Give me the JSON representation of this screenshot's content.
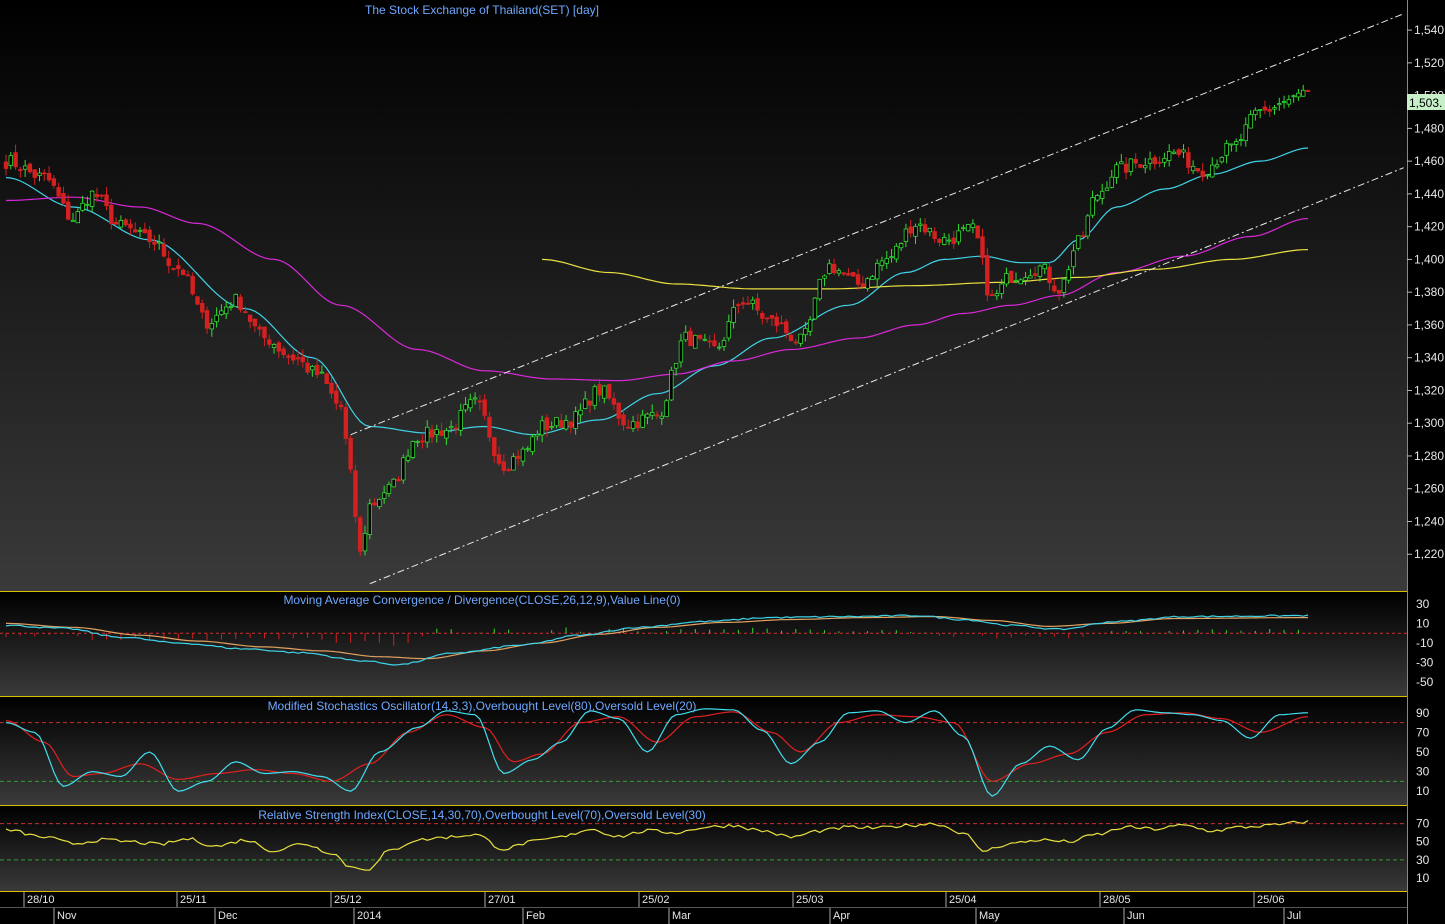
{
  "chart_data": {
    "type": "candlestick",
    "panels": {
      "price": {
        "title": "The Stock Exchange of Thailand(SET) [day]",
        "y_ticks": [
          "1,220",
          "1,240",
          "1,260",
          "1,280",
          "1,300",
          "1,320",
          "1,340",
          "1,360",
          "1,380",
          "1,400",
          "1,420",
          "1,440",
          "1,460",
          "1,480",
          "1,500",
          "1,520",
          "1,540"
        ],
        "ylim": [
          1200,
          1550
        ],
        "last_value_label": "1,503.",
        "last_value": 1503
      },
      "macd": {
        "title": "Moving Average Convergence / Divergence(CLOSE,26,12,9),Value Line(0)",
        "y_ticks": [
          "30",
          "10",
          "-10",
          "-30",
          "-50"
        ],
        "ylim": [
          -60,
          38
        ]
      },
      "stoch": {
        "title": "Modified Stochastics Oscillator(14,3,3),Overbought Level(80),Oversold Level(20)",
        "y_ticks": [
          "90",
          "70",
          "50",
          "30",
          "10"
        ],
        "ylim": [
          0,
          102
        ],
        "overbought": 80,
        "oversold": 20
      },
      "rsi": {
        "title": "Relative Strength Index(CLOSE,14,30,70),Overbought Level(70),Oversold Level(30)",
        "y_ticks": [
          "70",
          "50",
          "30",
          "10"
        ],
        "ylim": [
          0,
          85
        ],
        "overbought": 70,
        "oversold": 30
      }
    },
    "date_labels_top": [
      "28/10",
      "25/11",
      "25/12",
      "27/01",
      "25/02",
      "25/03",
      "25/04",
      "28/05",
      "25/06"
    ],
    "date_labels_bottom": [
      "Nov",
      "Dec",
      "2014",
      "Feb",
      "Mar",
      "Apr",
      "May",
      "Jun",
      "Jul"
    ],
    "price_anchors": [
      [
        0,
        1460
      ],
      [
        8,
        1450
      ],
      [
        14,
        1425
      ],
      [
        18,
        1440
      ],
      [
        24,
        1420
      ],
      [
        30,
        1412
      ],
      [
        36,
        1395
      ],
      [
        42,
        1362
      ],
      [
        48,
        1375
      ],
      [
        54,
        1352
      ],
      [
        60,
        1340
      ],
      [
        65,
        1330
      ],
      [
        70,
        1310
      ],
      [
        72,
        1268
      ],
      [
        74,
        1220
      ],
      [
        76,
        1250
      ],
      [
        80,
        1260
      ],
      [
        86,
        1292
      ],
      [
        92,
        1296
      ],
      [
        98,
        1312
      ],
      [
        104,
        1275
      ],
      [
        108,
        1282
      ],
      [
        112,
        1298
      ],
      [
        118,
        1302
      ],
      [
        124,
        1320
      ],
      [
        130,
        1300
      ],
      [
        136,
        1305
      ],
      [
        142,
        1352
      ],
      [
        148,
        1345
      ],
      [
        154,
        1375
      ],
      [
        160,
        1362
      ],
      [
        166,
        1350
      ],
      [
        172,
        1396
      ],
      [
        178,
        1385
      ],
      [
        184,
        1400
      ],
      [
        190,
        1422
      ],
      [
        196,
        1412
      ],
      [
        202,
        1418
      ],
      [
        206,
        1376
      ],
      [
        210,
        1390
      ],
      [
        216,
        1395
      ],
      [
        220,
        1382
      ],
      [
        224,
        1410
      ],
      [
        228,
        1440
      ],
      [
        232,
        1455
      ],
      [
        238,
        1460
      ],
      [
        244,
        1465
      ],
      [
        250,
        1455
      ],
      [
        256,
        1468
      ],
      [
        262,
        1490
      ],
      [
        268,
        1497
      ],
      [
        272,
        1503
      ]
    ],
    "ema_fast_anchors": [
      [
        0,
        1450
      ],
      [
        14,
        1432
      ],
      [
        30,
        1412
      ],
      [
        50,
        1370
      ],
      [
        64,
        1340
      ],
      [
        76,
        1298
      ],
      [
        88,
        1294
      ],
      [
        100,
        1298
      ],
      [
        110,
        1293
      ],
      [
        124,
        1302
      ],
      [
        136,
        1318
      ],
      [
        148,
        1335
      ],
      [
        160,
        1352
      ],
      [
        176,
        1372
      ],
      [
        188,
        1392
      ],
      [
        196,
        1400
      ],
      [
        204,
        1402
      ],
      [
        212,
        1398
      ],
      [
        218,
        1398
      ],
      [
        224,
        1412
      ],
      [
        232,
        1432
      ],
      [
        242,
        1443
      ],
      [
        252,
        1452
      ],
      [
        262,
        1460
      ],
      [
        272,
        1468
      ]
    ],
    "ema_mid_anchors": [
      [
        0,
        1436
      ],
      [
        14,
        1438
      ],
      [
        28,
        1432
      ],
      [
        40,
        1422
      ],
      [
        56,
        1400
      ],
      [
        70,
        1372
      ],
      [
        86,
        1345
      ],
      [
        100,
        1332
      ],
      [
        114,
        1327
      ],
      [
        128,
        1326
      ],
      [
        140,
        1330
      ],
      [
        152,
        1338
      ],
      [
        164,
        1345
      ],
      [
        178,
        1352
      ],
      [
        190,
        1360
      ],
      [
        200,
        1367
      ],
      [
        210,
        1372
      ],
      [
        220,
        1378
      ],
      [
        232,
        1392
      ],
      [
        246,
        1402
      ],
      [
        260,
        1414
      ],
      [
        272,
        1425
      ]
    ],
    "ma_slow_anchors": [
      [
        112,
        1400
      ],
      [
        126,
        1392
      ],
      [
        140,
        1385
      ],
      [
        156,
        1382
      ],
      [
        172,
        1382
      ],
      [
        190,
        1384
      ],
      [
        208,
        1386
      ],
      [
        224,
        1389
      ],
      [
        240,
        1394
      ],
      [
        256,
        1400
      ],
      [
        272,
        1406
      ]
    ],
    "channel_upper": [
      [
        72,
        1293
      ],
      [
        292,
        1550
      ]
    ],
    "channel_lower": [
      [
        76,
        1202
      ],
      [
        292,
        1456
      ]
    ],
    "macd_anchors": [
      [
        0,
        8
      ],
      [
        12,
        5
      ],
      [
        24,
        -4
      ],
      [
        36,
        -10
      ],
      [
        50,
        -16
      ],
      [
        62,
        -20
      ],
      [
        74,
        -28
      ],
      [
        82,
        -32
      ],
      [
        94,
        -20
      ],
      [
        108,
        -12
      ],
      [
        120,
        -2
      ],
      [
        132,
        6
      ],
      [
        146,
        12
      ],
      [
        160,
        16
      ],
      [
        176,
        17
      ],
      [
        190,
        18
      ],
      [
        200,
        14
      ],
      [
        210,
        8
      ],
      [
        220,
        4
      ],
      [
        232,
        12
      ],
      [
        246,
        17
      ],
      [
        272,
        18
      ]
    ],
    "macd_signal_anchors": [
      [
        0,
        10
      ],
      [
        14,
        6
      ],
      [
        28,
        -2
      ],
      [
        40,
        -8
      ],
      [
        54,
        -14
      ],
      [
        66,
        -18
      ],
      [
        78,
        -24
      ],
      [
        88,
        -26
      ],
      [
        100,
        -18
      ],
      [
        112,
        -10
      ],
      [
        124,
        -1
      ],
      [
        136,
        6
      ],
      [
        150,
        11
      ],
      [
        164,
        14
      ],
      [
        180,
        16
      ],
      [
        194,
        17
      ],
      [
        206,
        13
      ],
      [
        218,
        7
      ],
      [
        230,
        10
      ],
      [
        244,
        15
      ],
      [
        272,
        16
      ]
    ],
    "stoch_k_anchors": [
      [
        0,
        80
      ],
      [
        6,
        70
      ],
      [
        12,
        15
      ],
      [
        18,
        30
      ],
      [
        24,
        25
      ],
      [
        30,
        50
      ],
      [
        36,
        10
      ],
      [
        42,
        20
      ],
      [
        48,
        40
      ],
      [
        54,
        28
      ],
      [
        60,
        30
      ],
      [
        66,
        25
      ],
      [
        72,
        10
      ],
      [
        78,
        50
      ],
      [
        86,
        75
      ],
      [
        92,
        92
      ],
      [
        98,
        88
      ],
      [
        104,
        28
      ],
      [
        110,
        42
      ],
      [
        116,
        60
      ],
      [
        122,
        92
      ],
      [
        128,
        84
      ],
      [
        134,
        50
      ],
      [
        140,
        88
      ],
      [
        146,
        94
      ],
      [
        152,
        93
      ],
      [
        158,
        72
      ],
      [
        164,
        38
      ],
      [
        170,
        60
      ],
      [
        176,
        90
      ],
      [
        182,
        92
      ],
      [
        188,
        80
      ],
      [
        194,
        92
      ],
      [
        200,
        66
      ],
      [
        206,
        5
      ],
      [
        212,
        38
      ],
      [
        218,
        56
      ],
      [
        224,
        42
      ],
      [
        230,
        74
      ],
      [
        236,
        93
      ],
      [
        242,
        90
      ],
      [
        248,
        88
      ],
      [
        254,
        82
      ],
      [
        260,
        64
      ],
      [
        266,
        88
      ],
      [
        272,
        90
      ]
    ],
    "stoch_d_anchors": [
      [
        0,
        82
      ],
      [
        8,
        60
      ],
      [
        14,
        25
      ],
      [
        20,
        28
      ],
      [
        28,
        38
      ],
      [
        36,
        22
      ],
      [
        44,
        28
      ],
      [
        52,
        32
      ],
      [
        60,
        28
      ],
      [
        68,
        20
      ],
      [
        76,
        38
      ],
      [
        84,
        70
      ],
      [
        92,
        88
      ],
      [
        100,
        75
      ],
      [
        106,
        40
      ],
      [
        112,
        48
      ],
      [
        120,
        80
      ],
      [
        128,
        86
      ],
      [
        136,
        60
      ],
      [
        144,
        86
      ],
      [
        152,
        91
      ],
      [
        160,
        70
      ],
      [
        166,
        50
      ],
      [
        174,
        80
      ],
      [
        182,
        88
      ],
      [
        190,
        86
      ],
      [
        198,
        80
      ],
      [
        206,
        20
      ],
      [
        214,
        38
      ],
      [
        222,
        48
      ],
      [
        230,
        70
      ],
      [
        238,
        88
      ],
      [
        246,
        90
      ],
      [
        254,
        84
      ],
      [
        262,
        70
      ],
      [
        272,
        86
      ]
    ],
    "rsi_anchors": [
      [
        0,
        63
      ],
      [
        8,
        55
      ],
      [
        14,
        48
      ],
      [
        20,
        52
      ],
      [
        26,
        50
      ],
      [
        32,
        47
      ],
      [
        38,
        53
      ],
      [
        44,
        45
      ],
      [
        50,
        52
      ],
      [
        56,
        40
      ],
      [
        62,
        48
      ],
      [
        68,
        38
      ],
      [
        72,
        22
      ],
      [
        76,
        20
      ],
      [
        80,
        40
      ],
      [
        86,
        52
      ],
      [
        92,
        55
      ],
      [
        98,
        58
      ],
      [
        104,
        42
      ],
      [
        110,
        50
      ],
      [
        116,
        55
      ],
      [
        122,
        64
      ],
      [
        128,
        56
      ],
      [
        134,
        62
      ],
      [
        140,
        60
      ],
      [
        146,
        66
      ],
      [
        152,
        68
      ],
      [
        158,
        62
      ],
      [
        164,
        55
      ],
      [
        170,
        62
      ],
      [
        176,
        66
      ],
      [
        182,
        65
      ],
      [
        188,
        68
      ],
      [
        194,
        70
      ],
      [
        200,
        60
      ],
      [
        204,
        40
      ],
      [
        210,
        48
      ],
      [
        216,
        52
      ],
      [
        222,
        50
      ],
      [
        228,
        58
      ],
      [
        234,
        66
      ],
      [
        240,
        64
      ],
      [
        246,
        68
      ],
      [
        252,
        62
      ],
      [
        258,
        66
      ],
      [
        264,
        68
      ],
      [
        272,
        72
      ]
    ]
  }
}
